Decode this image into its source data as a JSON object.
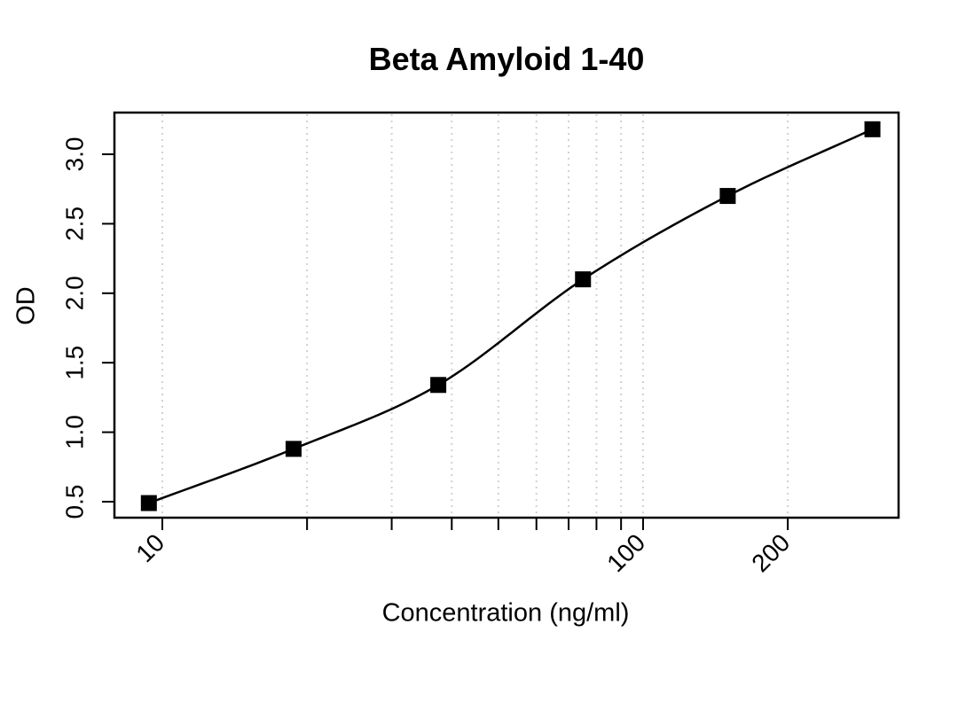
{
  "chart_data": {
    "type": "line",
    "title": "Beta Amyloid 1-40",
    "xlabel": "Concentration (ng/ml)",
    "ylabel": "OD",
    "x_scale": "log10",
    "grid": "vertical-dotted",
    "legend": "none",
    "marker": "filled-square",
    "x": [
      9.375,
      18.75,
      37.5,
      75,
      150,
      300
    ],
    "y": [
      0.49,
      0.88,
      1.34,
      2.1,
      2.7,
      3.18
    ],
    "points": [
      {
        "concentration_ng_ml": 9.375,
        "od": 0.49
      },
      {
        "concentration_ng_ml": 18.75,
        "od": 0.88
      },
      {
        "concentration_ng_ml": 37.5,
        "od": 1.34
      },
      {
        "concentration_ng_ml": 75,
        "od": 2.1
      },
      {
        "concentration_ng_ml": 150,
        "od": 2.7
      },
      {
        "concentration_ng_ml": 300,
        "od": 3.18
      }
    ],
    "xlim": [
      7.95,
      340
    ],
    "ylim": [
      0.385,
      3.3
    ],
    "x_ticks": [
      {
        "value": 10,
        "label": "10"
      },
      {
        "value": 20,
        "label": ""
      },
      {
        "value": 30,
        "label": ""
      },
      {
        "value": 40,
        "label": ""
      },
      {
        "value": 50,
        "label": ""
      },
      {
        "value": 60,
        "label": ""
      },
      {
        "value": 70,
        "label": ""
      },
      {
        "value": 80,
        "label": ""
      },
      {
        "value": 90,
        "label": ""
      },
      {
        "value": 100,
        "label": "100"
      },
      {
        "value": 200,
        "label": "200"
      }
    ],
    "y_ticks": [
      {
        "value": 0.5,
        "label": "0.5"
      },
      {
        "value": 1.0,
        "label": "1.0"
      },
      {
        "value": 1.5,
        "label": "1.5"
      },
      {
        "value": 2.0,
        "label": "2.0"
      },
      {
        "value": 2.5,
        "label": "2.5"
      },
      {
        "value": 3.0,
        "label": "3.0"
      }
    ],
    "colors": {
      "line": "#000000",
      "marker": "#000000",
      "grid": "#d2d2d2",
      "axis": "#000000",
      "text": "#000000",
      "background": "#ffffff"
    }
  }
}
